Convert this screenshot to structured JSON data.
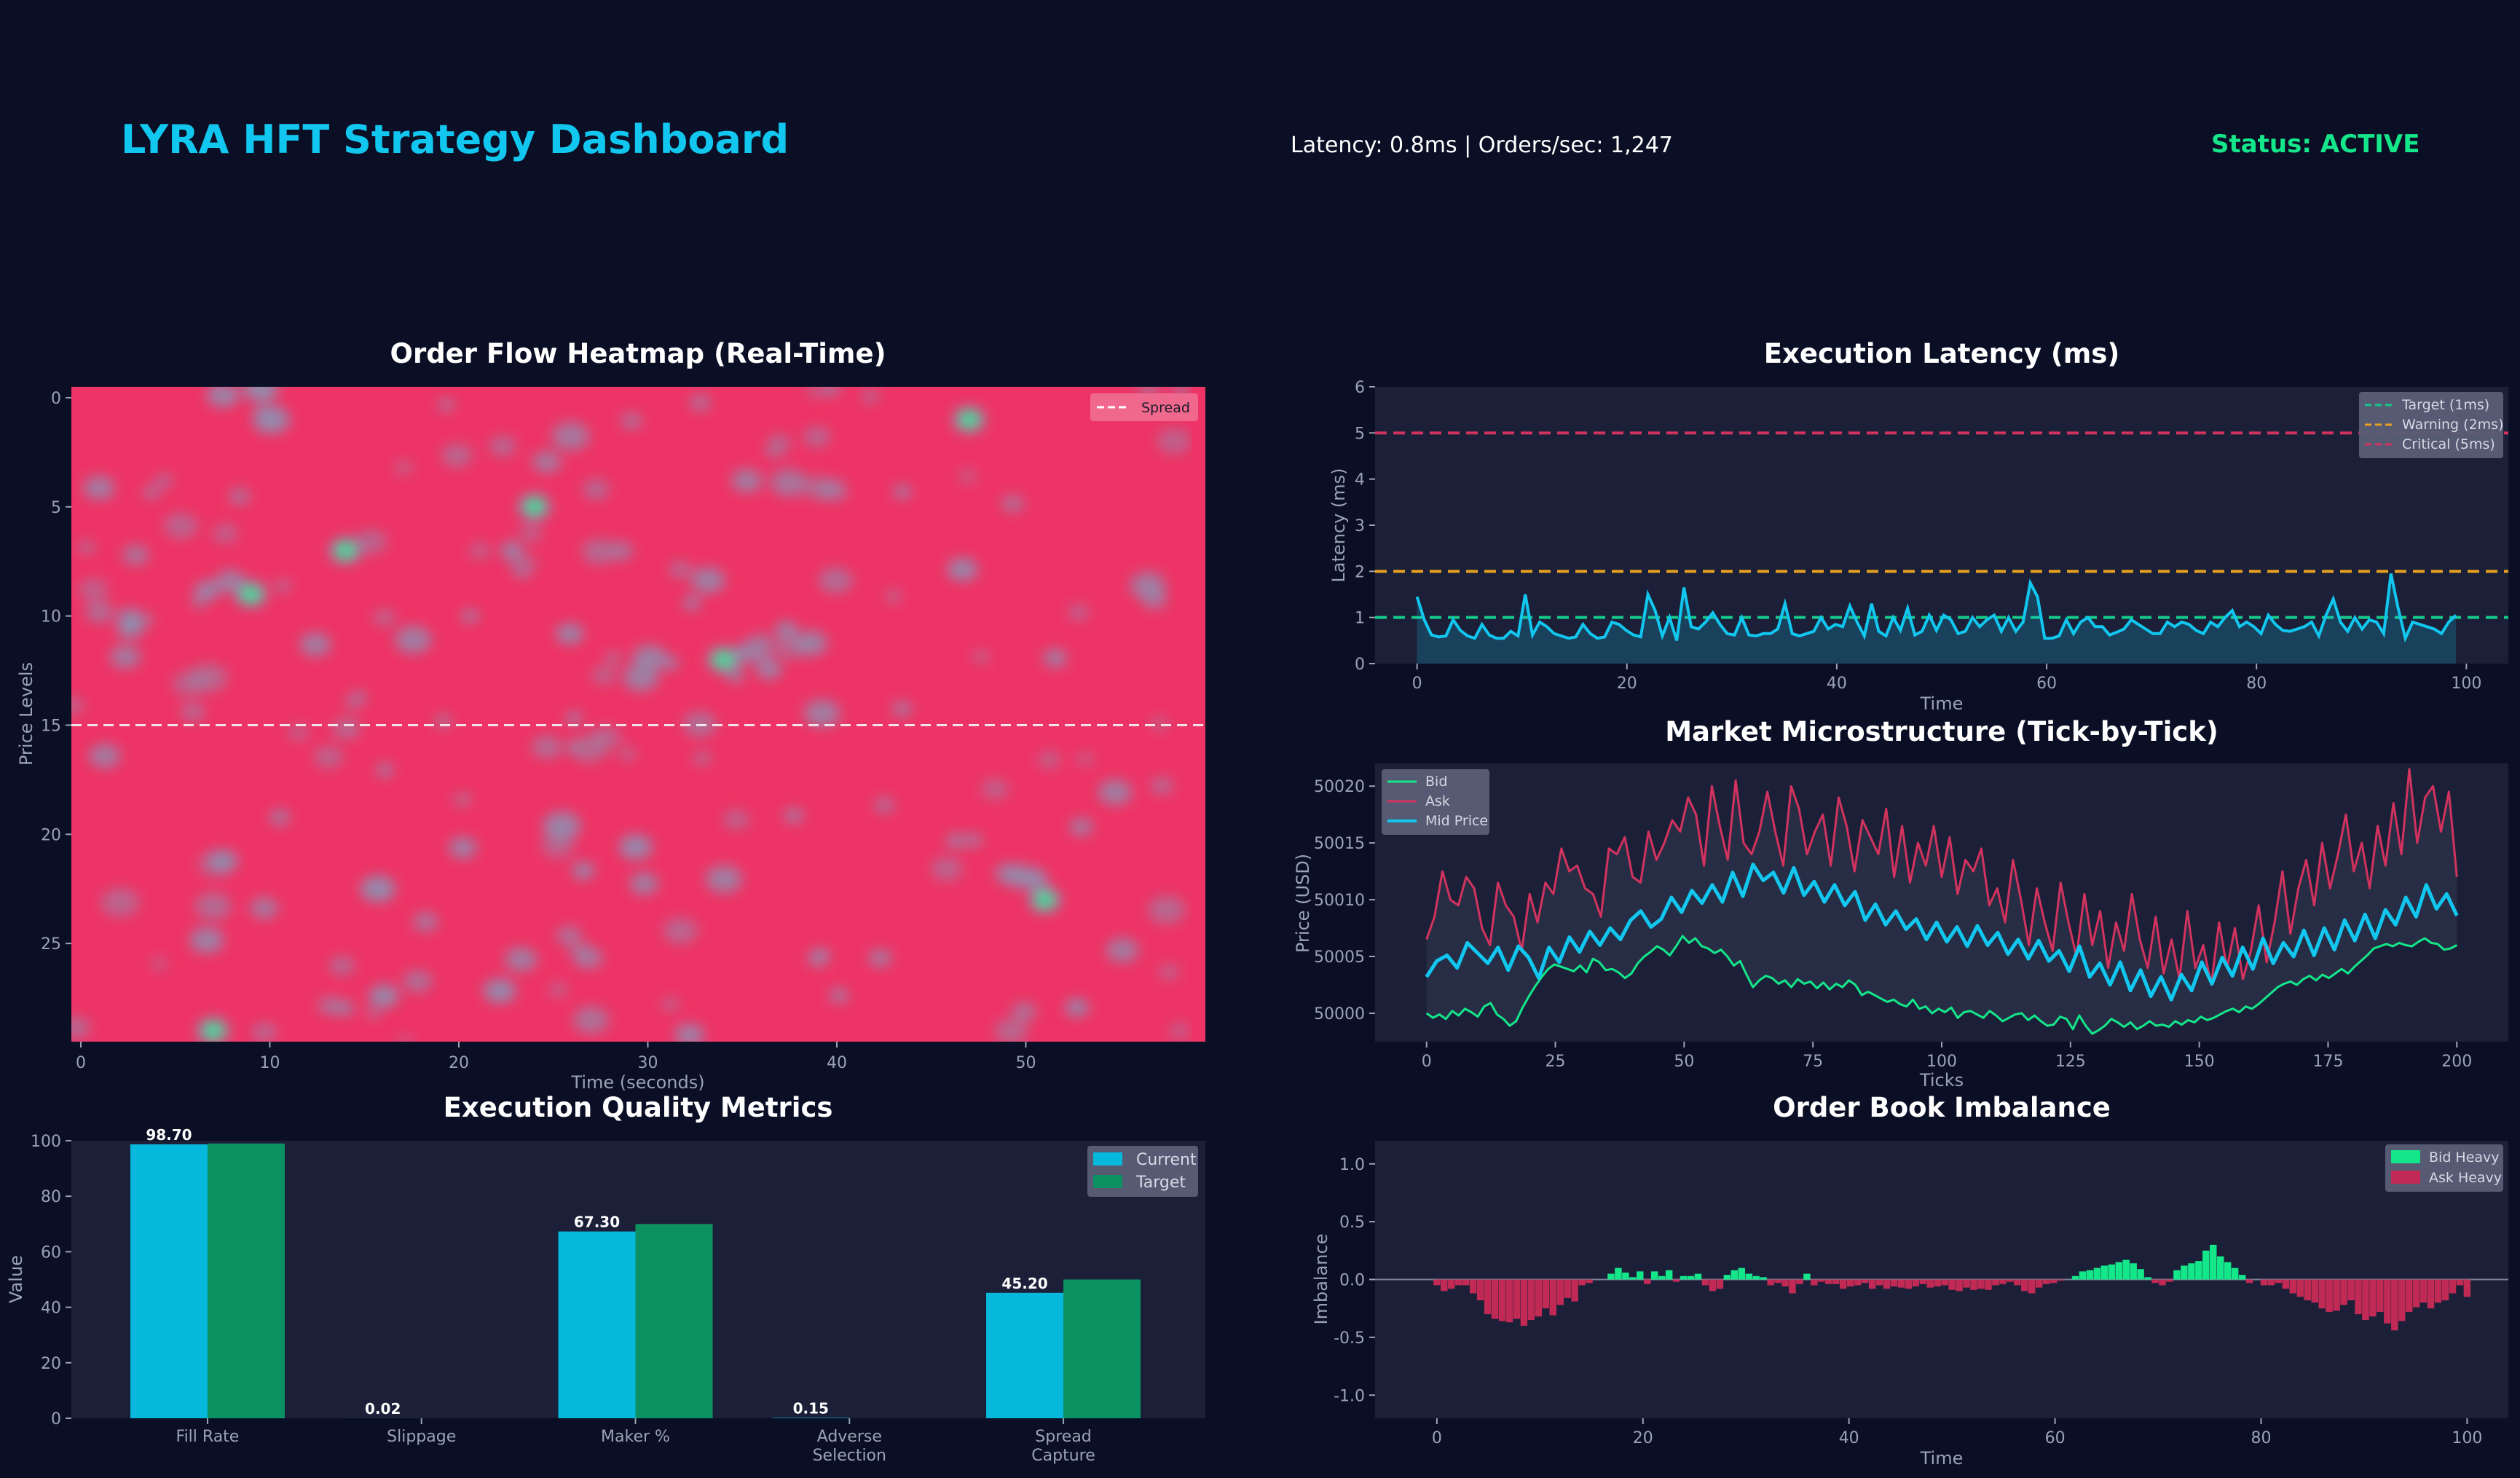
{
  "header": {
    "title": "LYRA HFT Strategy Dashboard",
    "metrics": "Latency: 0.8ms | Orders/sec: 1,247",
    "status": "Status: ACTIVE"
  },
  "colors": {
    "background": "#0b0f25",
    "panel": "#1b2038",
    "accent_cyan": "#12c7ef",
    "green": "#14e68a",
    "red": "#ee3466",
    "amber": "#e8a020"
  },
  "chart_data": [
    {
      "id": "heatmap",
      "type": "heatmap",
      "title": "Order Flow Heatmap (Real-Time)",
      "xlabel": "Time (seconds)",
      "ylabel": "Price Levels",
      "x_ticks": [
        "0",
        "10",
        "20",
        "30",
        "40",
        "50"
      ],
      "y_ticks": [
        "0",
        "5",
        "10",
        "15",
        "20",
        "25"
      ],
      "xlim": [
        -0.5,
        59.5
      ],
      "ylim": [
        29.5,
        -0.5
      ],
      "spread_level": 15,
      "legend": [
        "Spread"
      ],
      "legend_position": "top-right",
      "colormap": [
        "#14e68a",
        "#7a8fae",
        "#ee3466"
      ],
      "hot_spots": [
        [
          24,
          5
        ],
        [
          51,
          23
        ],
        [
          34,
          12
        ],
        [
          7,
          29
        ],
        [
          47,
          1
        ],
        [
          9,
          9
        ],
        [
          14,
          7
        ]
      ]
    },
    {
      "id": "latency",
      "type": "line",
      "title": "Execution Latency (ms)",
      "xlabel": "Time",
      "ylabel": "Latency (ms)",
      "xlim": [
        -4,
        104
      ],
      "ylim": [
        0,
        6
      ],
      "x_ticks": [
        "0",
        "20",
        "40",
        "60",
        "80",
        "100"
      ],
      "y_ticks": [
        "0",
        "1",
        "2",
        "3",
        "4",
        "5",
        "6"
      ],
      "thresholds": [
        {
          "name": "Target (1ms)",
          "value": 1,
          "color": "#14c98a"
        },
        {
          "name": "Warning (2ms)",
          "value": 2,
          "color": "#e8a020"
        },
        {
          "name": "Critical (5ms)",
          "value": 5,
          "color": "#d2335e"
        }
      ],
      "legend_position": "top-right",
      "series": [
        {
          "values": [
            1.45,
            0.95,
            0.62,
            0.58,
            0.6,
            0.95,
            0.72,
            0.6,
            0.55,
            0.85,
            0.62,
            0.55,
            0.55,
            0.7,
            0.6,
            1.5,
            0.62,
            0.9,
            0.8,
            0.65,
            0.6,
            0.55,
            0.58,
            0.85,
            0.65,
            0.55,
            0.58,
            0.9,
            0.85,
            0.72,
            0.62,
            0.58,
            1.5,
            1.15,
            0.6,
            1.0,
            0.5,
            1.65,
            0.8,
            0.75,
            0.9,
            1.1,
            0.85,
            0.65,
            0.62,
            1.0,
            0.62,
            0.6,
            0.65,
            0.65,
            0.75,
            1.3,
            0.65,
            0.6,
            0.65,
            0.7,
            1.0,
            0.75,
            0.85,
            0.8,
            1.25,
            0.9,
            0.6,
            1.3,
            0.7,
            0.6,
            1.0,
            0.72,
            1.2,
            0.62,
            0.7,
            1.05,
            0.72,
            1.05,
            0.95,
            0.65,
            0.7,
            1.0,
            0.8,
            0.95,
            1.05,
            0.7,
            1.0,
            0.7,
            0.9,
            1.75,
            1.45,
            0.55,
            0.55,
            0.6,
            0.95,
            0.65,
            0.9,
            1.0,
            0.8,
            0.8,
            0.62,
            0.68,
            0.75,
            0.95,
            0.85,
            0.75,
            0.65,
            0.65,
            0.9,
            0.8,
            0.9,
            0.85,
            0.72,
            0.65,
            0.9,
            0.8,
            1.0,
            1.15,
            0.8,
            0.9,
            0.8,
            0.65,
            1.05,
            0.85,
            0.72,
            0.7,
            0.75,
            0.8,
            0.9,
            0.6,
            1.05,
            1.4,
            0.9,
            0.7,
            1.0,
            0.75,
            0.95,
            0.9,
            0.65,
            1.95,
            1.2,
            0.55,
            0.9,
            0.85,
            0.8,
            0.75,
            0.65,
            0.9,
            1.05
          ]
        }
      ]
    },
    {
      "id": "microstructure",
      "type": "line",
      "title": "Market Microstructure (Tick-by-Tick)",
      "xlabel": "Ticks",
      "ylabel": "Price (USD)",
      "xlim": [
        -10,
        210
      ],
      "ylim": [
        49997.5,
        50022
      ],
      "x_ticks": [
        "0",
        "25",
        "50",
        "75",
        "100",
        "125",
        "150",
        "175",
        "200"
      ],
      "y_ticks": [
        "50000",
        "50005",
        "50010",
        "50015",
        "50020"
      ],
      "legend_position": "top-left",
      "series": [
        {
          "name": "Bid",
          "color": "#14e68a",
          "values": [
            50000.0,
            49999.6,
            49999.9,
            49999.5,
            50000.2,
            49999.8,
            50000.4,
            50000.1,
            49999.7,
            50000.6,
            50000.9,
            49999.9,
            49999.5,
            49998.9,
            49999.3,
            50000.5,
            50001.5,
            50002.4,
            50003.2,
            50003.9,
            50004.3,
            50004.1,
            50003.9,
            50003.7,
            50004.2,
            50003.6,
            50004.8,
            50004.5,
            50003.8,
            50003.9,
            50003.6,
            50003.1,
            50003.5,
            50004.4,
            50005.0,
            50005.4,
            50005.9,
            50005.6,
            50005.1,
            50005.9,
            50006.8,
            50006.2,
            50006.6,
            50005.9,
            50005.7,
            50005.3,
            50005.6,
            50005.0,
            50004.2,
            50004.6,
            50003.4,
            50002.3,
            50002.9,
            50003.3,
            50003.1,
            50002.6,
            50002.9,
            50002.3,
            50003.0,
            50002.6,
            50002.8,
            50002.2,
            50002.7,
            50002.1,
            50002.6,
            50002.3,
            50002.9,
            50002.5,
            50001.6,
            50001.9,
            50001.6,
            50001.3,
            50001.0,
            50001.2,
            50000.8,
            50000.6,
            50001.2,
            50000.4,
            50000.6,
            50000.0,
            50000.4,
            50000.1,
            50000.5,
            49999.6,
            50000.1,
            50000.2,
            49999.9,
            49999.6,
            50000.2,
            49999.8,
            49999.3,
            49999.6,
            49999.9,
            50000.0,
            49999.4,
            49999.8,
            49999.3,
            49998.9,
            49999.0,
            49999.7,
            49999.5,
            49998.6,
            49999.8,
            49998.9,
            49998.2,
            49998.5,
            49998.9,
            49999.5,
            49999.2,
            49998.8,
            49999.2,
            49998.6,
            49998.9,
            49999.3,
            49998.9,
            49999.0,
            49998.8,
            49999.3,
            49999.0,
            49999.4,
            49999.2,
            49999.7,
            49999.4,
            49999.6,
            49999.9,
            50000.2,
            50000.4,
            50000.1,
            50000.6,
            50000.4,
            50000.8,
            50001.3,
            50001.8,
            50002.3,
            50002.6,
            50002.8,
            50002.5,
            50003.0,
            50003.3,
            50002.9,
            50003.4,
            50003.1,
            50003.5,
            50003.9,
            50003.5,
            50004.1,
            50004.6,
            50005.1,
            50005.7,
            50005.9,
            50006.1,
            50005.9,
            50006.2,
            50006.0,
            50005.9,
            50006.3,
            50006.6,
            50006.2,
            50006.1,
            50005.6,
            50005.7,
            50006.0
          ]
        },
        {
          "name": "Ask",
          "color": "#d2335e",
          "values": [
            50006.5,
            50008.5,
            50012.5,
            50010.0,
            50009.5,
            50012.0,
            50011.0,
            50007.5,
            50006.0,
            50011.5,
            50009.5,
            50008.5,
            50005.5,
            50010.5,
            50008.0,
            50011.5,
            50010.5,
            50014.5,
            50012.5,
            50013.0,
            50011.0,
            50010.5,
            50008.5,
            50014.5,
            50014.0,
            50015.5,
            50012.0,
            50011.5,
            50016.0,
            50013.5,
            50015.0,
            50017.0,
            50016.0,
            50019.0,
            50017.5,
            50013.0,
            50020.0,
            50016.5,
            50013.5,
            50020.5,
            50015.0,
            50014.0,
            50016.0,
            50019.5,
            50016.0,
            50013.0,
            50020.0,
            50018.0,
            50014.0,
            50016.0,
            50017.5,
            50013.0,
            50019.0,
            50016.5,
            50012.5,
            50017.0,
            50015.5,
            50014.0,
            50018.0,
            50012.0,
            50016.5,
            50011.5,
            50015.0,
            50013.0,
            50016.5,
            50012.0,
            50015.5,
            50010.5,
            50013.5,
            50012.5,
            50014.5,
            50009.5,
            50011.0,
            50008.0,
            50013.5,
            50010.0,
            50006.0,
            50011.0,
            50008.0,
            50005.5,
            50011.5,
            50008.0,
            50005.0,
            50010.5,
            50006.0,
            50009.0,
            50004.0,
            50008.0,
            50005.5,
            50010.5,
            50006.5,
            50004.0,
            50008.5,
            50003.5,
            50006.5,
            50003.0,
            50009.0,
            50004.0,
            50006.0,
            50002.5,
            50008.0,
            50004.0,
            50007.5,
            50003.0,
            50005.5,
            50009.5,
            50004.5,
            50008.0,
            50012.5,
            50007.0,
            50011.0,
            50013.5,
            50009.5,
            50015.0,
            50011.0,
            50014.0,
            50017.5,
            50012.5,
            50015.0,
            50011.0,
            50016.5,
            50013.0,
            50018.5,
            50014.0,
            50021.5,
            50015.0,
            50019.0,
            50020.0,
            50016.0,
            50019.5,
            50012.0
          ]
        },
        {
          "name": "Mid Price",
          "color": "#12c7ef",
          "values": [
            50003.2,
            50004.6,
            50005.1,
            50004.0,
            50006.2,
            50005.3,
            50004.4,
            50005.8,
            50003.8,
            50005.9,
            50004.9,
            50003.1,
            50005.8,
            50004.5,
            50006.7,
            50005.4,
            50007.2,
            50006.0,
            50007.5,
            50006.5,
            50008.2,
            50009.0,
            50007.6,
            50008.3,
            50010.2,
            50008.9,
            50010.8,
            50009.7,
            50011.3,
            50009.8,
            50012.4,
            50010.3,
            50013.1,
            50011.7,
            50012.4,
            50010.6,
            50012.8,
            50010.4,
            50011.6,
            50009.8,
            50011.3,
            50009.5,
            50010.7,
            50008.2,
            50009.6,
            50007.8,
            50009.0,
            50007.4,
            50008.3,
            50006.5,
            50008.0,
            50006.3,
            50007.6,
            50005.9,
            50007.7,
            50006.0,
            50007.1,
            50005.2,
            50006.5,
            50004.8,
            50006.4,
            50004.6,
            50005.5,
            50003.7,
            50005.9,
            50003.2,
            50004.4,
            50002.5,
            50004.5,
            50002.0,
            50003.8,
            50001.5,
            50003.2,
            50001.2,
            50003.4,
            50002.0,
            50004.5,
            50002.6,
            50004.9,
            50003.3,
            50005.8,
            50003.9,
            50006.6,
            50004.4,
            50006.2,
            50005.0,
            50007.3,
            50005.1,
            50007.5,
            50005.6,
            50008.2,
            50006.4,
            50008.7,
            50006.6,
            50009.1,
            50007.8,
            50010.2,
            50008.5,
            50011.3,
            50009.2,
            50010.5,
            50008.6
          ]
        }
      ]
    },
    {
      "id": "quality",
      "type": "bar",
      "title": "Execution Quality Metrics",
      "xlabel": "",
      "ylabel": "Value",
      "ylim": [
        0,
        100
      ],
      "y_ticks": [
        "0",
        "20",
        "40",
        "60",
        "80",
        "100"
      ],
      "categories": [
        "Fill Rate",
        "Slippage",
        "Maker %",
        "Adverse Selection",
        "Spread Capture"
      ],
      "category_labels": [
        [
          "Fill Rate"
        ],
        [
          "Slippage"
        ],
        [
          "Maker %"
        ],
        [
          "Adverse",
          "Selection"
        ],
        [
          "Spread",
          "Capture"
        ]
      ],
      "legend_position": "top-right",
      "series": [
        {
          "name": "Current",
          "color": "#05b8dc",
          "values": [
            98.7,
            0.02,
            67.3,
            0.15,
            45.2
          ],
          "labels": [
            "98.70",
            "0.02",
            "67.30",
            "0.15",
            "45.20"
          ]
        },
        {
          "name": "Target",
          "color": "#0c9262",
          "values": [
            99.0,
            0,
            70.0,
            0,
            50.0
          ]
        }
      ]
    },
    {
      "id": "imbalance",
      "type": "bar",
      "title": "Order Book Imbalance",
      "xlabel": "Time",
      "ylabel": "Imbalance",
      "xlim": [
        -6,
        104
      ],
      "ylim": [
        -1.2,
        1.2
      ],
      "x_ticks": [
        "0",
        "20",
        "40",
        "60",
        "80",
        "100"
      ],
      "y_ticks": [
        "1.0",
        "0.5",
        "0.0",
        "-0.5",
        "-1.0"
      ],
      "legend_position": "top-right",
      "series": [
        {
          "name": "Bid Heavy",
          "color": "#14e68a"
        },
        {
          "name": "Ask Heavy",
          "color": "#c02a55"
        }
      ],
      "values": [
        -0.05,
        -0.1,
        -0.08,
        -0.05,
        -0.05,
        -0.12,
        -0.18,
        -0.3,
        -0.34,
        -0.36,
        -0.37,
        -0.34,
        -0.4,
        -0.35,
        -0.32,
        -0.25,
        -0.31,
        -0.22,
        -0.16,
        -0.19,
        -0.05,
        -0.03,
        0.0,
        0.0,
        0.05,
        0.1,
        0.06,
        0.02,
        0.07,
        -0.04,
        0.07,
        0.03,
        0.08,
        -0.02,
        0.03,
        0.03,
        0.05,
        -0.05,
        -0.1,
        -0.08,
        0.04,
        0.08,
        0.1,
        0.05,
        0.03,
        0.02,
        -0.05,
        -0.03,
        -0.06,
        -0.12,
        -0.04,
        0.05,
        -0.05,
        -0.02,
        -0.04,
        -0.04,
        -0.08,
        -0.06,
        -0.05,
        -0.03,
        -0.08,
        -0.05,
        -0.08,
        -0.06,
        -0.07,
        -0.08,
        -0.06,
        -0.04,
        -0.07,
        -0.06,
        -0.05,
        -0.09,
        -0.1,
        -0.07,
        -0.09,
        -0.08,
        -0.09,
        -0.05,
        -0.04,
        -0.02,
        -0.05,
        -0.1,
        -0.12,
        -0.07,
        -0.04,
        -0.03,
        -0.01,
        0.0,
        0.03,
        0.07,
        0.08,
        0.1,
        0.12,
        0.13,
        0.15,
        0.17,
        0.14,
        0.09,
        0.02,
        -0.03,
        -0.05,
        -0.02,
        0.08,
        0.12,
        0.14,
        0.16,
        0.25,
        0.3,
        0.2,
        0.15,
        0.1,
        0.04,
        -0.03,
        0.0,
        -0.05,
        -0.05,
        -0.03,
        -0.08,
        -0.12,
        -0.15,
        -0.18,
        -0.2,
        -0.25,
        -0.28,
        -0.27,
        -0.22,
        -0.18,
        -0.3,
        -0.35,
        -0.32,
        -0.28,
        -0.38,
        -0.44,
        -0.36,
        -0.28,
        -0.24,
        -0.2,
        -0.25,
        -0.2,
        -0.18,
        -0.12,
        -0.05,
        -0.15
      ]
    }
  ]
}
